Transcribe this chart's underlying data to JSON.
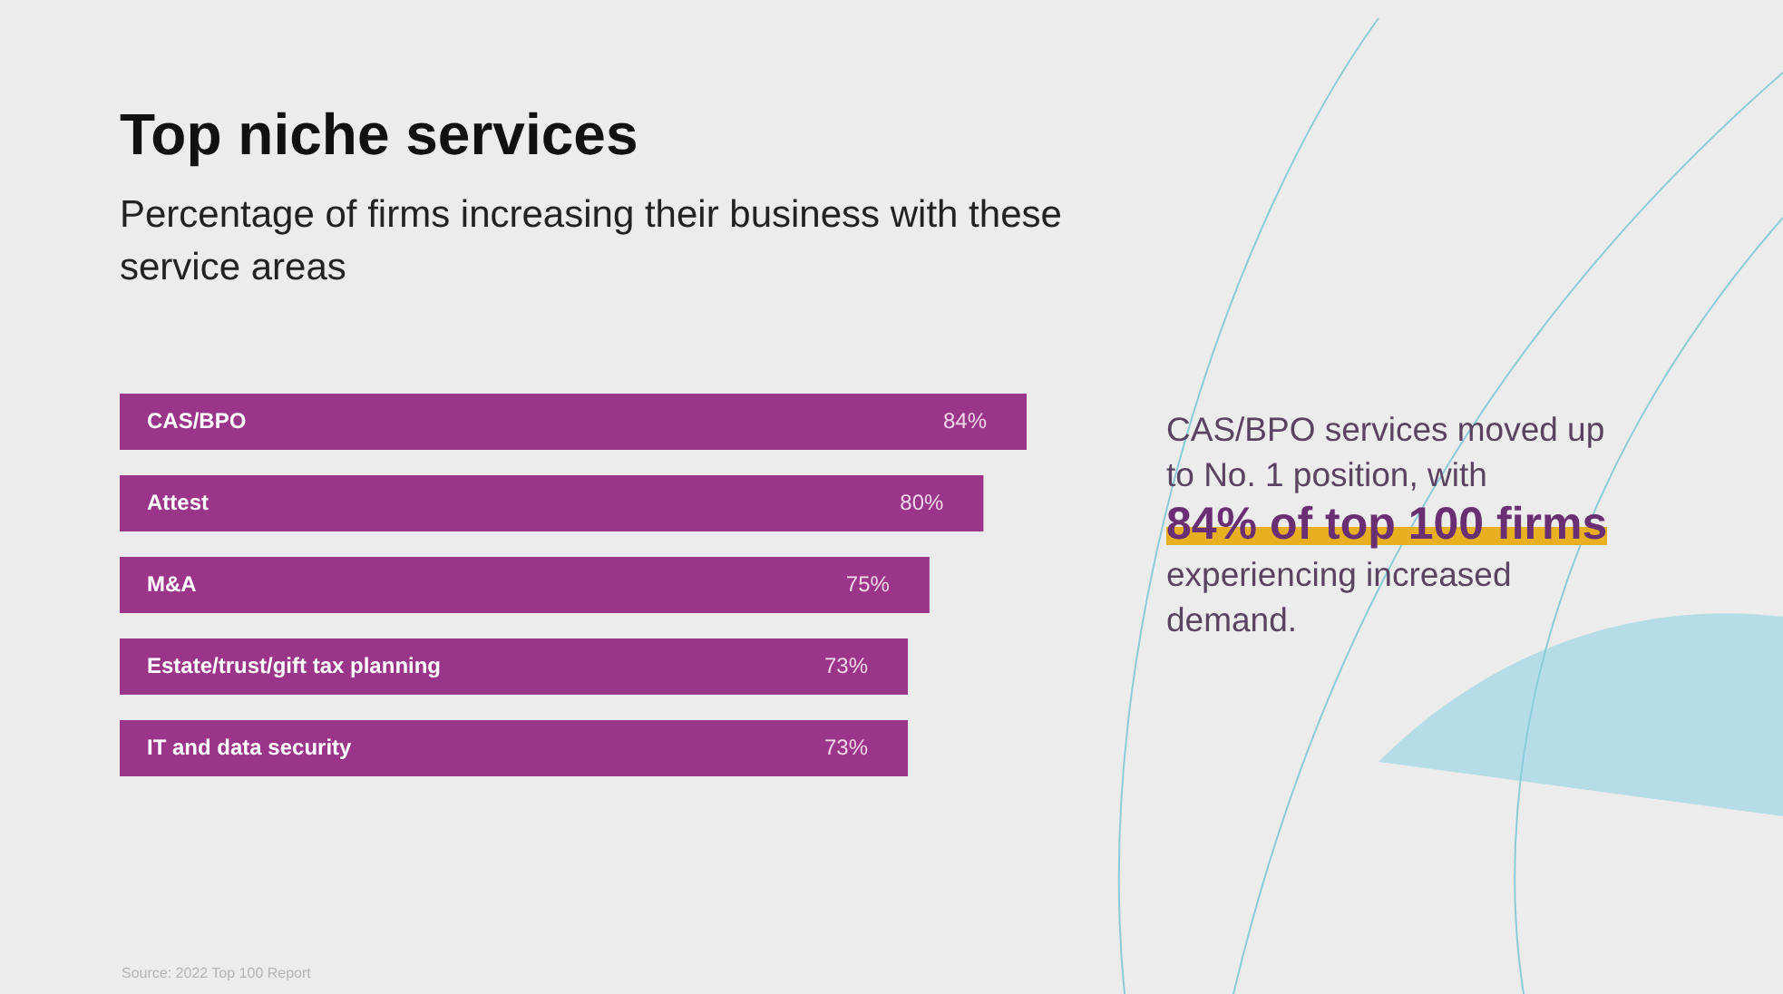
{
  "chart_data": {
    "type": "bar",
    "orientation": "horizontal",
    "title": "Top niche services",
    "subtitle": "Percentage of firms increasing their business with these service areas",
    "categories": [
      "CAS/BPO",
      "Attest",
      "M&A",
      "Estate/trust/gift tax planning",
      "IT and data security"
    ],
    "values": [
      84,
      80,
      75,
      73,
      73
    ],
    "color": "#9b3589",
    "value_labels": [
      "84%",
      "80%",
      "75%",
      "73%",
      "73%"
    ],
    "xlim": [
      0,
      84
    ],
    "tick_labels": "y",
    "annotations": [
      "CAS/BPO services moved up to No. 1 position, with",
      "84% of top 100 firms",
      "experiencing increased demand.",
      "Source: 2022 Top 100 Report"
    ]
  }
}
